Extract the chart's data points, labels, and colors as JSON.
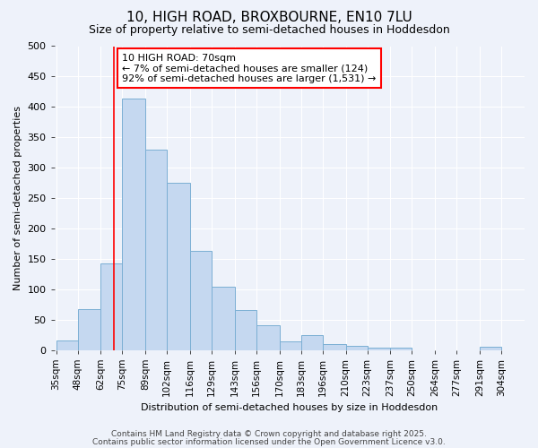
{
  "title": "10, HIGH ROAD, BROXBOURNE, EN10 7LU",
  "subtitle": "Size of property relative to semi-detached houses in Hoddesdon",
  "xlabel": "Distribution of semi-detached houses by size in Hoddesdon",
  "ylabel": "Number of semi-detached properties",
  "bin_labels": [
    "35sqm",
    "48sqm",
    "62sqm",
    "75sqm",
    "89sqm",
    "102sqm",
    "116sqm",
    "129sqm",
    "143sqm",
    "156sqm",
    "170sqm",
    "183sqm",
    "196sqm",
    "210sqm",
    "223sqm",
    "237sqm",
    "250sqm",
    "264sqm",
    "277sqm",
    "291sqm",
    "304sqm"
  ],
  "bar_heights": [
    15,
    67,
    143,
    413,
    330,
    275,
    163,
    104,
    65,
    40,
    14,
    24,
    9,
    7,
    4,
    4,
    0,
    0,
    0,
    5
  ],
  "bar_color": "#c5d8f0",
  "bar_edge_color": "#7bafd4",
  "bar_edge_width": 0.7,
  "vline_x_index": 2.5,
  "vline_color": "red",
  "annotation_line1": "10 HIGH ROAD: 70sqm",
  "annotation_line2": "← 7% of semi-detached houses are smaller (124)",
  "annotation_line3": "92% of semi-detached houses are larger (1,531) →",
  "annotation_box_color": "white",
  "annotation_box_edge": "red",
  "ylim": [
    0,
    500
  ],
  "yticks": [
    0,
    50,
    100,
    150,
    200,
    250,
    300,
    350,
    400,
    450,
    500
  ],
  "footer_line1": "Contains HM Land Registry data © Crown copyright and database right 2025.",
  "footer_line2": "Contains public sector information licensed under the Open Government Licence v3.0.",
  "background_color": "#eef2fa",
  "grid_color": "white",
  "title_fontsize": 11,
  "subtitle_fontsize": 9,
  "ylabel_fontsize": 8,
  "xlabel_fontsize": 8,
  "ytick_fontsize": 8,
  "xtick_fontsize": 7.5,
  "annotation_fontsize": 8,
  "footer_fontsize": 6.5
}
